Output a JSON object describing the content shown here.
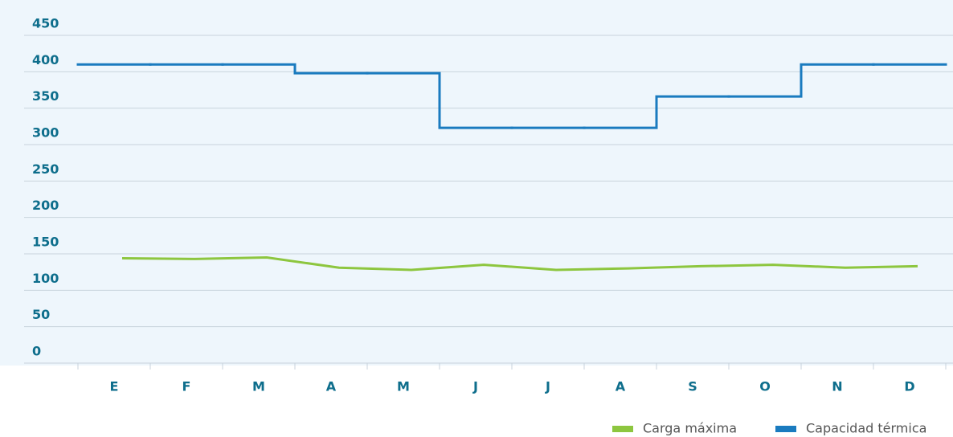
{
  "chart_data": {
    "type": "line",
    "categories": [
      "E",
      "F",
      "M",
      "A",
      "M",
      "J",
      "J",
      "A",
      "S",
      "O",
      "N",
      "D"
    ],
    "series": [
      {
        "name": "Carga máxima",
        "color": "#8dc63f",
        "values": [
          144,
          143,
          145,
          131,
          128,
          135,
          128,
          130,
          133,
          135,
          131,
          133
        ]
      },
      {
        "name": "Capacidad térmica",
        "color": "#1a7bbf",
        "step": true,
        "values": [
          410,
          410,
          410,
          398,
          398,
          323,
          323,
          323,
          366,
          366,
          410,
          410
        ]
      }
    ],
    "ylim": [
      0,
      450
    ],
    "yticks": [
      0,
      50,
      100,
      150,
      200,
      250,
      300,
      350,
      400,
      450
    ],
    "grid": true,
    "legend": "bottom-right"
  }
}
